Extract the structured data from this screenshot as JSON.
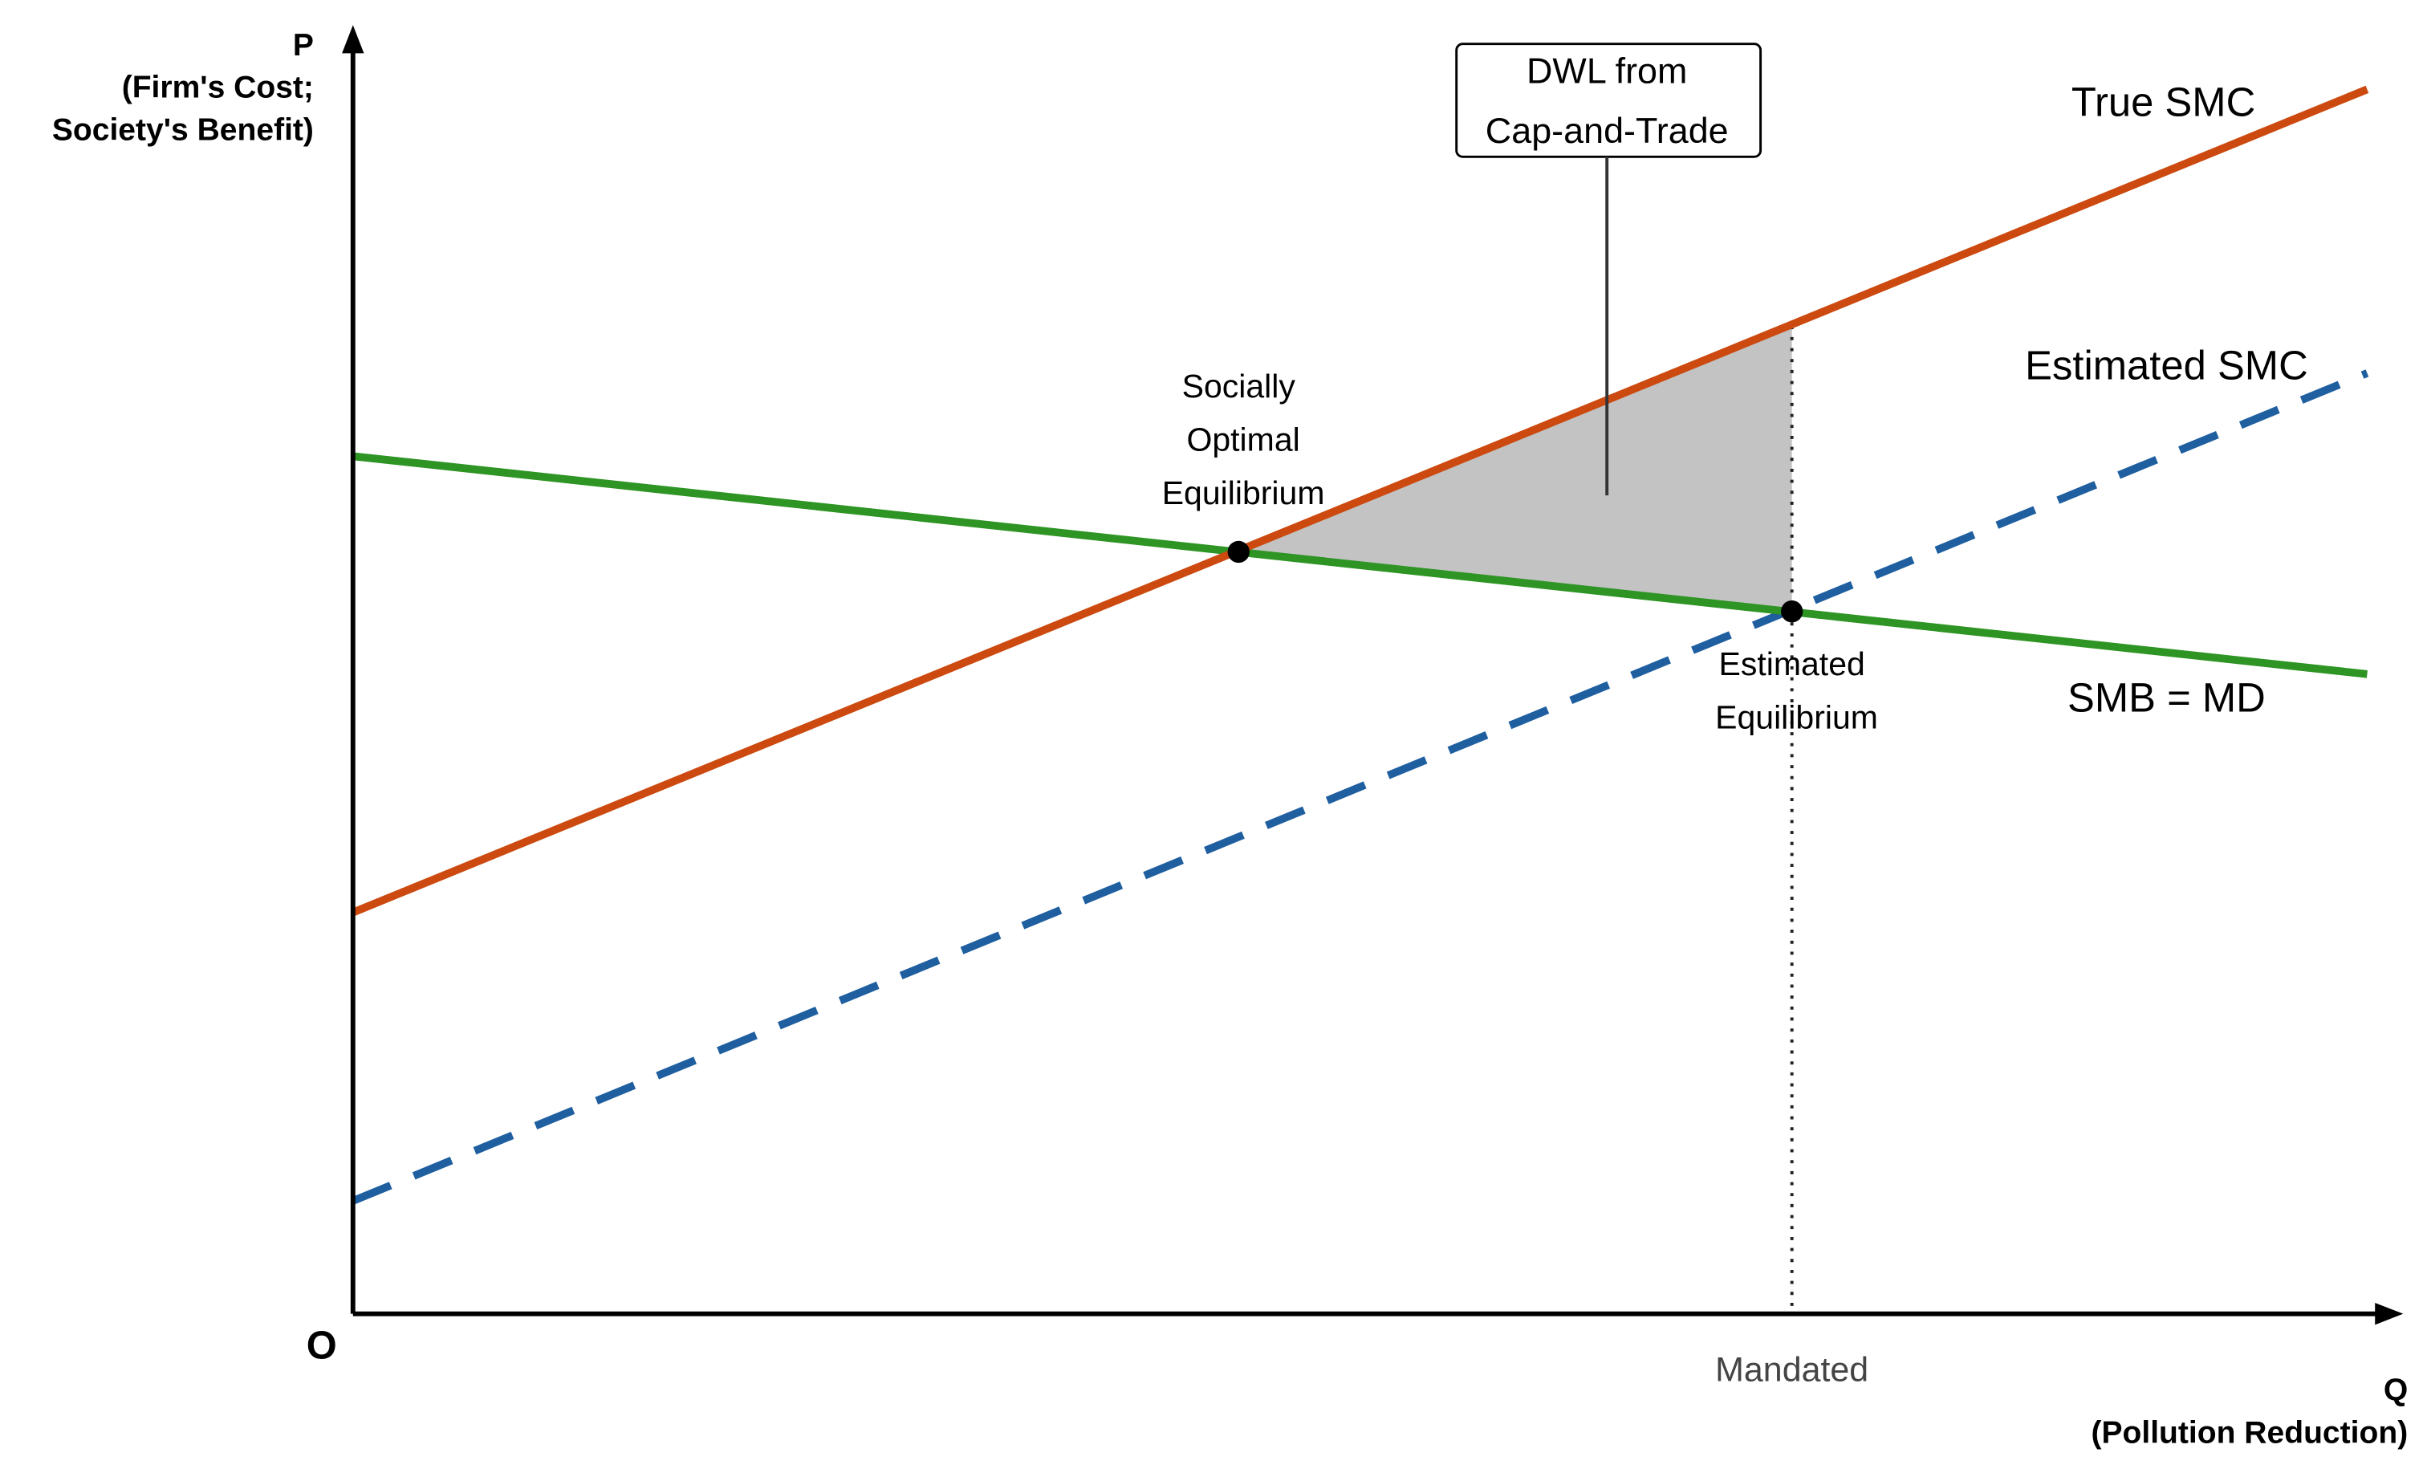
{
  "axes": {
    "y_label": [
      "P",
      "(Firm's Cost;",
      "Society's Benefit)"
    ],
    "origin": "O",
    "x_label": [
      "Q",
      "(Pollution Reduction)"
    ],
    "x_marker": "Mandated"
  },
  "curves": [
    {
      "label": "True SMC"
    },
    {
      "label": "Estimated SMC"
    },
    {
      "label": "SMB = MD"
    }
  ],
  "callout": {
    "lines": [
      "DWL from",
      "Cap-and-Trade"
    ]
  },
  "points": [
    {
      "label": [
        "Socially",
        "Optimal",
        "Equilibrium"
      ]
    },
    {
      "label": [
        "Estimated",
        "Equilibrium"
      ]
    }
  ]
}
